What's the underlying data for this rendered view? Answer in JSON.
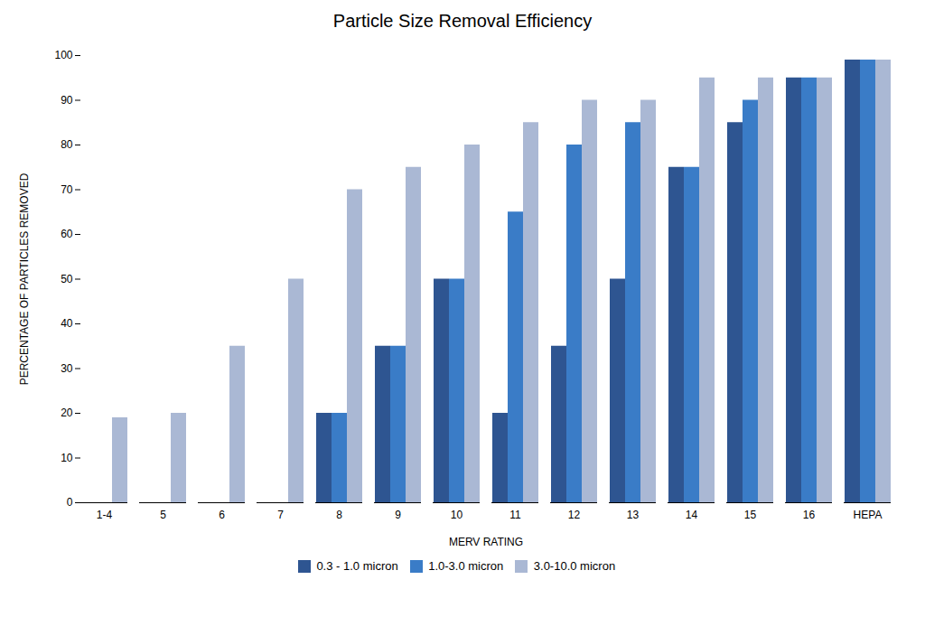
{
  "chart_data": {
    "type": "bar",
    "title": "Particle Size Removal Efficiency",
    "xlabel": "MERV RATING",
    "ylabel": "PERCENTAGE OF PARTICLES REMOVED",
    "categories": [
      "1-4",
      "5",
      "6",
      "7",
      "8",
      "9",
      "10",
      "11",
      "12",
      "13",
      "14",
      "15",
      "16",
      "HEPA"
    ],
    "series": [
      {
        "name": "0.3 - 1.0 micron",
        "color": "#2E5591",
        "values": [
          0,
          0,
          0,
          0,
          20,
          35,
          50,
          20,
          35,
          50,
          75,
          85,
          95,
          99
        ]
      },
      {
        "name": "1.0-3.0 micron",
        "color": "#3A7CC7",
        "values": [
          0,
          0,
          0,
          0,
          20,
          35,
          50,
          65,
          80,
          85,
          75,
          90,
          95,
          99
        ]
      },
      {
        "name": "3.0-10.0 micron",
        "color": "#AAB8D4",
        "values": [
          19,
          20,
          35,
          50,
          70,
          75,
          80,
          85,
          90,
          90,
          95,
          95,
          95,
          99
        ]
      }
    ],
    "ylim": [
      0,
      100
    ],
    "yticks": [
      0,
      10,
      20,
      30,
      40,
      50,
      60,
      70,
      80,
      90,
      100
    ],
    "grid": false,
    "legend": "bottom"
  }
}
